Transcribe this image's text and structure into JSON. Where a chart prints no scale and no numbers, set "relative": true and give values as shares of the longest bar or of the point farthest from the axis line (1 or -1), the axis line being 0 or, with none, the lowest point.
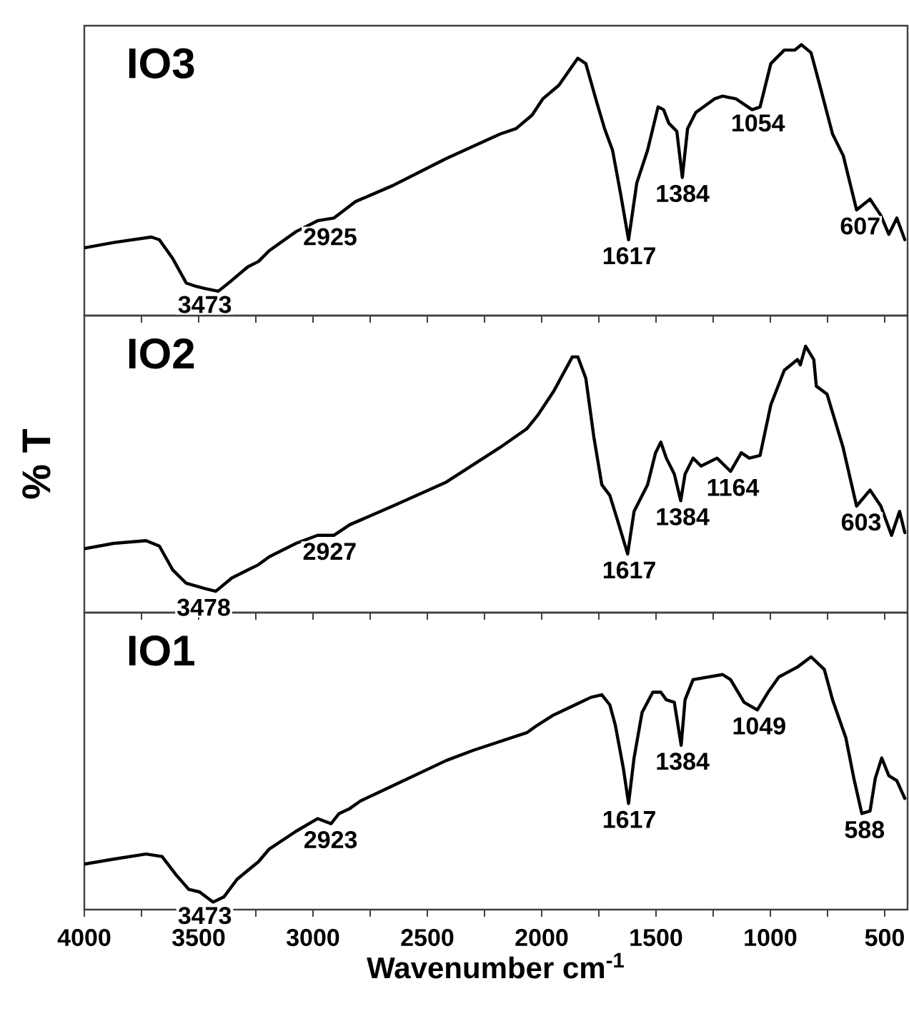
{
  "chart_data": [
    {
      "type": "line",
      "title": "IO3",
      "relative": true,
      "color": "#000000",
      "line_style": "solid",
      "tick_labels": false,
      "xlim": [
        4000,
        400
      ],
      "xticks": [
        4000,
        {
          "value": 3750,
          "label": null
        },
        3500,
        {
          "value": 3250,
          "label": null
        },
        3000,
        {
          "value": 2750,
          "label": null
        },
        2500,
        {
          "value": 2250,
          "label": null
        },
        2000,
        {
          "value": 1750,
          "label": null
        },
        1500,
        {
          "value": 1250,
          "label": null
        },
        1000,
        {
          "value": 750,
          "label": null
        },
        500
      ],
      "x": [
        4000,
        3871,
        3707,
        3672,
        3613,
        3554,
        3519,
        3472,
        3414,
        3355,
        3285,
        3238,
        3191,
        3074,
        2980,
        2909,
        2816,
        2651,
        2417,
        2182,
        2112,
        2042,
        1995,
        1925,
        1842,
        1807,
        1760,
        1725,
        1690,
        1655,
        1620,
        1584,
        1537,
        1491,
        1467,
        1444,
        1409,
        1385,
        1362,
        1326,
        1244,
        1209,
        1150,
        1080,
        1045,
        998,
        939,
        893,
        864,
        822,
        787,
        728,
        681,
        623,
        564,
        517,
        482,
        447,
        412
      ],
      "values": [
        0.25,
        0.27,
        0.29,
        0.28,
        0.21,
        0.12,
        0.11,
        0.1,
        0.09,
        0.13,
        0.18,
        0.2,
        0.24,
        0.31,
        0.35,
        0.36,
        0.42,
        0.48,
        0.58,
        0.67,
        0.69,
        0.74,
        0.8,
        0.85,
        0.95,
        0.93,
        0.79,
        0.69,
        0.61,
        0.45,
        0.28,
        0.49,
        0.61,
        0.77,
        0.76,
        0.71,
        0.68,
        0.51,
        0.69,
        0.75,
        0.8,
        0.81,
        0.8,
        0.76,
        0.77,
        0.93,
        0.98,
        0.98,
        1.0,
        0.97,
        0.86,
        0.67,
        0.59,
        0.39,
        0.43,
        0.37,
        0.3,
        0.36,
        0.28
      ],
      "annotations": [
        {
          "text": "3473",
          "x": 3473,
          "y": 0.1
        },
        {
          "text": "2925",
          "x": 2925,
          "y": 0.35
        },
        {
          "text": "1617",
          "x": 1617,
          "y": 0.28
        },
        {
          "text": "1384",
          "x": 1384,
          "y": 0.51
        },
        {
          "text": "1054",
          "x": 1054,
          "y": 0.77
        },
        {
          "text": "607",
          "x": 607,
          "y": 0.39
        }
      ]
    },
    {
      "type": "line",
      "title": "IO2",
      "ylabel": "% T",
      "relative": true,
      "color": "#000000",
      "line_style": "solid",
      "tick_labels": false,
      "xlim": [
        4000,
        400
      ],
      "xticks": [
        4000,
        {
          "value": 3750,
          "label": null
        },
        3500,
        {
          "value": 3250,
          "label": null
        },
        3000,
        {
          "value": 2750,
          "label": null
        },
        2500,
        {
          "value": 2250,
          "label": null
        },
        2000,
        {
          "value": 1750,
          "label": null
        },
        1500,
        {
          "value": 1250,
          "label": null
        },
        1000,
        {
          "value": 750,
          "label": null
        },
        500
      ],
      "x": [
        4000,
        3871,
        3730,
        3672,
        3613,
        3554,
        3472,
        3425,
        3355,
        3285,
        3238,
        3191,
        3074,
        2980,
        2909,
        2839,
        2651,
        2417,
        2182,
        2065,
        2018,
        1948,
        1866,
        1842,
        1807,
        1772,
        1737,
        1702,
        1666,
        1624,
        1596,
        1537,
        1502,
        1479,
        1455,
        1420,
        1392,
        1373,
        1338,
        1303,
        1233,
        1174,
        1127,
        1092,
        1045,
        998,
        939,
        881,
        869,
        846,
        810,
        799,
        752,
        682,
        623,
        564,
        517,
        470,
        435,
        412
      ],
      "values": [
        0.24,
        0.26,
        0.27,
        0.25,
        0.16,
        0.11,
        0.09,
        0.08,
        0.13,
        0.16,
        0.18,
        0.21,
        0.26,
        0.29,
        0.29,
        0.33,
        0.4,
        0.49,
        0.62,
        0.69,
        0.74,
        0.83,
        0.96,
        0.96,
        0.88,
        0.66,
        0.48,
        0.44,
        0.34,
        0.22,
        0.38,
        0.48,
        0.6,
        0.64,
        0.58,
        0.52,
        0.42,
        0.52,
        0.58,
        0.55,
        0.58,
        0.53,
        0.6,
        0.58,
        0.59,
        0.78,
        0.91,
        0.95,
        0.93,
        1.0,
        0.95,
        0.85,
        0.82,
        0.62,
        0.4,
        0.46,
        0.4,
        0.29,
        0.38,
        0.3
      ],
      "annotations": [
        {
          "text": "3478",
          "x": 3478,
          "y": 0.08
        },
        {
          "text": "2927",
          "x": 2927,
          "y": 0.29
        },
        {
          "text": "1617",
          "x": 1617,
          "y": 0.22
        },
        {
          "text": "1384",
          "x": 1384,
          "y": 0.42
        },
        {
          "text": "1164",
          "x": 1164,
          "y": 0.53
        },
        {
          "text": "603",
          "x": 603,
          "y": 0.4
        }
      ]
    },
    {
      "type": "line",
      "title": "IO1",
      "xlabel": "Wavenumber cm$^{-1}$",
      "relative": true,
      "color": "#000000",
      "line_style": "solid",
      "tick_labels": "x",
      "xlim": [
        4000,
        400
      ],
      "xticks": [
        4000,
        {
          "value": 3750,
          "label": null
        },
        3500,
        {
          "value": 3250,
          "label": null
        },
        3000,
        {
          "value": 2750,
          "label": null
        },
        2500,
        {
          "value": 2250,
          "label": null
        },
        2000,
        {
          "value": 1750,
          "label": null
        },
        1500,
        {
          "value": 1250,
          "label": null
        },
        1000,
        {
          "value": 750,
          "label": null
        },
        500
      ],
      "x": [
        4000,
        3871,
        3730,
        3660,
        3601,
        3543,
        3496,
        3437,
        3390,
        3332,
        3238,
        3191,
        3074,
        2980,
        2921,
        2886,
        2839,
        2792,
        2651,
        2417,
        2300,
        2065,
        2018,
        1948,
        1831,
        1784,
        1737,
        1702,
        1678,
        1643,
        1620,
        1596,
        1561,
        1514,
        1479,
        1455,
        1420,
        1390,
        1373,
        1338,
        1209,
        1174,
        1115,
        1057,
        1010,
        963,
        881,
        822,
        764,
        728,
        670,
        635,
        600,
        564,
        541,
        513,
        482,
        447,
        412
      ],
      "values": [
        0.18,
        0.2,
        0.22,
        0.21,
        0.14,
        0.08,
        0.07,
        0.03,
        0.05,
        0.12,
        0.19,
        0.24,
        0.31,
        0.36,
        0.34,
        0.38,
        0.4,
        0.43,
        0.49,
        0.59,
        0.63,
        0.7,
        0.73,
        0.77,
        0.82,
        0.84,
        0.85,
        0.81,
        0.73,
        0.56,
        0.42,
        0.6,
        0.78,
        0.86,
        0.86,
        0.83,
        0.82,
        0.65,
        0.83,
        0.91,
        0.93,
        0.91,
        0.82,
        0.79,
        0.86,
        0.92,
        0.96,
        1.0,
        0.95,
        0.83,
        0.68,
        0.52,
        0.38,
        0.39,
        0.52,
        0.6,
        0.53,
        0.51,
        0.44
      ],
      "annotations": [
        {
          "text": "3473",
          "x": 3473,
          "y": 0.04
        },
        {
          "text": "2923",
          "x": 2923,
          "y": 0.34
        },
        {
          "text": "1617",
          "x": 1617,
          "y": 0.42
        },
        {
          "text": "1384",
          "x": 1384,
          "y": 0.65
        },
        {
          "text": "1049",
          "x": 1049,
          "y": 0.79
        },
        {
          "text": "588",
          "x": 588,
          "y": 0.38
        }
      ]
    }
  ]
}
